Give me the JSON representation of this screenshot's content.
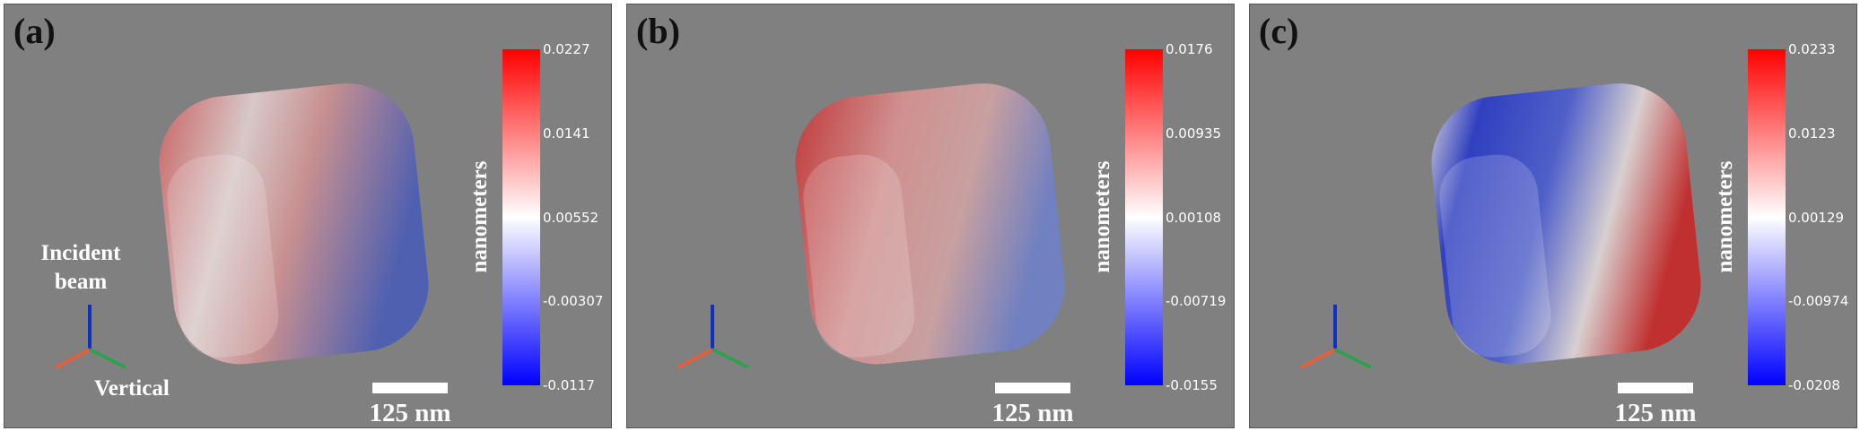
{
  "panels": [
    {
      "label": "(a)",
      "colorbar_title": "nanometers",
      "colorbar_ticks": [
        "0.0227",
        "0.0141",
        "0.00552",
        "-0.00307",
        "-0.0117"
      ],
      "scale_bar": "125 nm",
      "annotations": [
        "Incident beam",
        "Vertical"
      ]
    },
    {
      "label": "(b)",
      "colorbar_title": "nanometers",
      "colorbar_ticks": [
        "0.0176",
        "0.00935",
        "0.00108",
        "-0.00719",
        "-0.0155"
      ],
      "scale_bar": "125 nm"
    },
    {
      "label": "(c)",
      "colorbar_title": "nanometers",
      "colorbar_ticks": [
        "0.0233",
        "0.0123",
        "0.00129",
        "-0.00974",
        "-0.0208"
      ],
      "scale_bar": "125 nm"
    }
  ]
}
